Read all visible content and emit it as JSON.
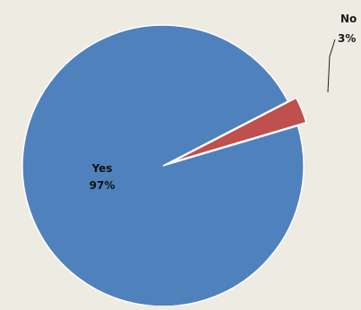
{
  "chart_data": {
    "type": "pie",
    "title": "",
    "slices": [
      {
        "label": "Yes",
        "value": 97,
        "value_label": "97%",
        "color": "#4f81bd"
      },
      {
        "label": "No",
        "value": 3,
        "value_label": "3%",
        "color": "#c0504d"
      }
    ],
    "exploded_slice": "No",
    "legend": "none"
  }
}
